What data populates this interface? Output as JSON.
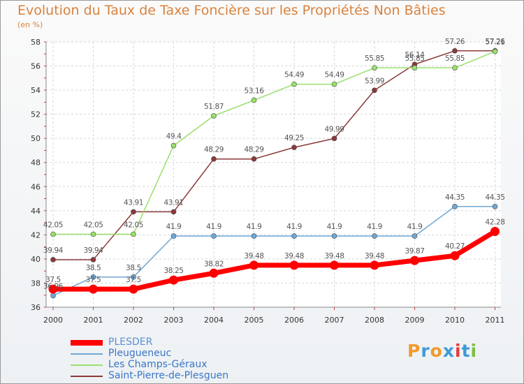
{
  "chart_data": {
    "type": "line",
    "title": "Evolution du Taux de Taxe Foncière sur les Propriétés Non Bâties",
    "subtitle": "(en %)",
    "xlabel": "",
    "ylabel": "",
    "ylim": [
      36,
      58
    ],
    "y_ticks": [
      "36",
      "38",
      "40",
      "42",
      "44",
      "46",
      "48",
      "50",
      "52",
      "54",
      "56",
      "58"
    ],
    "x": [
      "2000",
      "2001",
      "2002",
      "2003",
      "2004",
      "2005",
      "2006",
      "2007",
      "2008",
      "2009",
      "2010",
      "2011"
    ],
    "grid": true,
    "legend_position": "bottom-left",
    "series": [
      {
        "name": "PLESDER",
        "color": "#ff0000",
        "values": [
          37.5,
          37.5,
          37.5,
          38.25,
          38.82,
          39.48,
          39.48,
          39.48,
          39.48,
          39.87,
          40.27,
          42.28
        ],
        "labels": [
          "37.5",
          "37.5",
          "37.5",
          "38.25",
          "38.82",
          "39.48",
          "39.48",
          "39.48",
          "39.48",
          "39.87",
          "40.27",
          "42.28"
        ]
      },
      {
        "name": "Pleugueneuc",
        "color": "#6fa8d6",
        "values": [
          36.96,
          38.5,
          38.5,
          41.9,
          41.9,
          41.9,
          41.9,
          41.9,
          41.9,
          41.9,
          44.35,
          44.35
        ],
        "labels": [
          "36.96",
          "38.5",
          "38.5",
          "41.9",
          "41.9",
          "41.9",
          "41.9",
          "41.9",
          "41.9",
          "41.9",
          "44.35",
          "44.35"
        ]
      },
      {
        "name": "Les Champs-Géraux",
        "color": "#99e06b",
        "values": [
          42.05,
          42.05,
          42.05,
          49.4,
          51.87,
          53.16,
          54.49,
          54.49,
          55.85,
          55.85,
          55.85,
          57.21
        ],
        "labels": [
          "42.05",
          "42.05",
          "42.05",
          "49.4",
          "51.87",
          "53.16",
          "54.49",
          "54.49",
          "55.85",
          "55.85",
          "55.85",
          "57.21"
        ]
      },
      {
        "name": "Saint-Pierre-de-Plesguen",
        "color": "#8b3a3a",
        "values": [
          39.94,
          39.94,
          43.91,
          43.91,
          48.29,
          48.29,
          49.25,
          49.99,
          53.99,
          56.14,
          57.26,
          57.26
        ],
        "labels": [
          "39.94",
          "39.94",
          "43.91",
          "43.91",
          "48.29",
          "48.29",
          "49.25",
          "49.99",
          "53.99",
          "56.14",
          "57.26",
          "57.26"
        ]
      }
    ]
  },
  "logo": {
    "letters": [
      "P",
      "r",
      "o",
      "x",
      "i",
      "t",
      "i"
    ],
    "colors": [
      "#f39a2b",
      "#3e9ad6",
      "#f39a2b",
      "#3e9ad6",
      "#e23b3b",
      "#3e9ad6",
      "#7bc043"
    ]
  }
}
